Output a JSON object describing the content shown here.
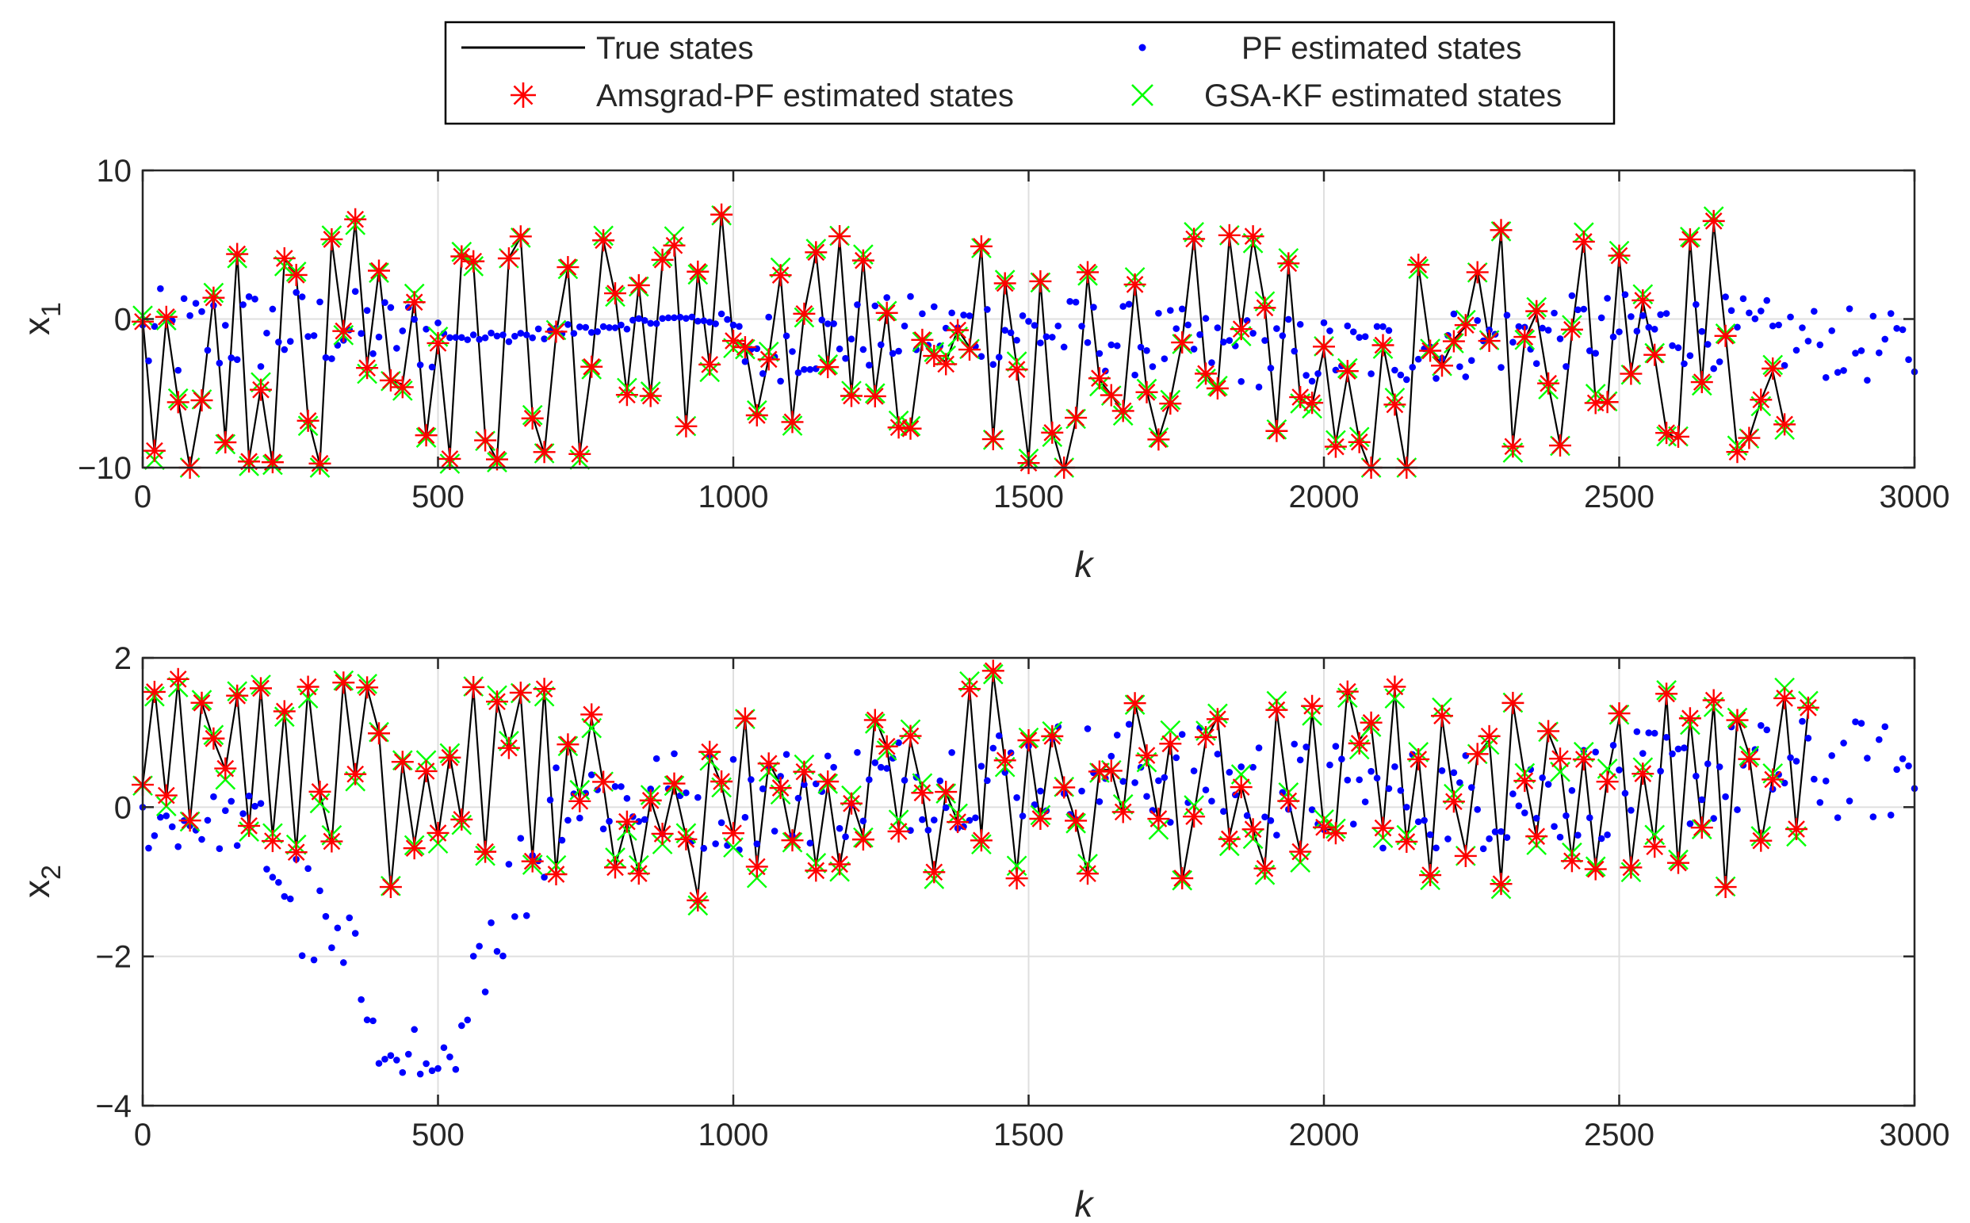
{
  "chart_data": {
    "type": "line",
    "legend": {
      "placement": "top-center",
      "entries": [
        {
          "label": "True states",
          "marker": "line",
          "color": "#000000"
        },
        {
          "label": "PF estimated states",
          "marker": "dot",
          "color": "#0000ff"
        },
        {
          "label": "Amsgrad-PF estimated states",
          "marker": "asterisk",
          "color": "#ff0000"
        },
        {
          "label": "GSA-KF estimated states",
          "marker": "cross",
          "color": "#00ff00"
        }
      ]
    },
    "sample_step": 20,
    "subplots": [
      {
        "ylabel": "x",
        "ylabel_sub": "1",
        "xlabel": "k",
        "xlim": [
          0,
          3000
        ],
        "ylim": [
          -10,
          10
        ],
        "xticks": [
          0,
          500,
          1000,
          1500,
          2000,
          2500,
          3000
        ],
        "yticks": [
          -10,
          0,
          10
        ],
        "ytick_labels": [
          "−10",
          "0",
          "10"
        ],
        "grid": true,
        "true_states": [
          0,
          -9,
          0,
          -5.5,
          -10,
          -5.5,
          1.6,
          -8.2,
          4.5,
          -9.5,
          -4.6,
          -9.8,
          4,
          3,
          -6.7,
          -9.8,
          5.3,
          -0.8,
          6.6,
          -3.2,
          3.3,
          -4.1,
          -4.4,
          1.3,
          -8,
          -1.5,
          -9.3,
          4.1,
          3.7,
          -8,
          -9.5,
          4.1,
          5.5,
          -6.5,
          -9.1,
          -1,
          3.5,
          -9.1,
          -3.2,
          5.3,
          1.6,
          -5.1,
          2.3,
          -5.2,
          3.8,
          5.1,
          -7.3,
          3.2,
          -3.2,
          7.2,
          -1.6,
          -1.7,
          -6.4,
          -2.6,
          3,
          -6.9,
          0.4,
          4.5,
          -3.3,
          5.4,
          -5.1,
          4.1,
          -5.1,
          0.6,
          -7.3,
          -7.5,
          -1.5,
          -2.3,
          -2.9,
          -0.7,
          -1.9,
          4.9,
          -8.2,
          2.6,
          -3.2,
          -9.5,
          2.6,
          -7.5,
          -10.3,
          -6.8,
          3,
          -4.1,
          -5.1,
          -6.3,
          2.4,
          -4.8,
          -8.1,
          -5.5,
          -1.5,
          5.5,
          -3.7,
          -4.8,
          5.5,
          -0.8,
          5.5,
          0.9,
          -7.5,
          3.7,
          -5.4,
          -5.8,
          -2,
          -8.4,
          -3.7,
          -8.2,
          -10.3,
          -1.7,
          -5.7,
          -10.3,
          3.6,
          -2.1,
          -3.1,
          -1.4,
          -0.5,
          3.3,
          -1.6,
          5.9,
          -8.5,
          -1.4,
          0.4,
          -4.4,
          -8.5,
          -0.9,
          5.4,
          -5.5,
          -5.7,
          4.2,
          -3.6,
          1.2,
          -2.5,
          -7.6,
          -8.1,
          5.4,
          -4.4,
          6.5,
          -1,
          -9,
          -8,
          -5.5,
          -3.5,
          -7.2
        ]
      },
      {
        "ylabel": "x",
        "ylabel_sub": "2",
        "xlabel": "k",
        "xlim": [
          0,
          3000
        ],
        "ylim": [
          -4,
          2
        ],
        "xticks": [
          0,
          500,
          1000,
          1500,
          2000,
          2500,
          3000
        ],
        "yticks": [
          -4,
          -2,
          0,
          2
        ],
        "ytick_labels": [
          "−4",
          "−2",
          "0",
          "2"
        ],
        "grid": true,
        "true_states": [
          0.3,
          1.6,
          0.1,
          1.7,
          -0.2,
          1.4,
          0.9,
          0.5,
          1.5,
          -0.3,
          1.6,
          -0.4,
          1.3,
          -0.6,
          1.6,
          0.2,
          -0.5,
          1.7,
          0.4,
          1.6,
          1,
          -1.1,
          0.6,
          -0.5,
          0.5,
          -0.4,
          0.7,
          -0.2,
          1.6,
          -0.6,
          1.4,
          0.8,
          1.5,
          -0.7,
          1.6,
          -0.9,
          0.9,
          0.1,
          1.2,
          0.3,
          -0.8,
          -0.2,
          -0.9,
          0.1,
          -0.4,
          0.3,
          -0.4,
          -1.2,
          0.7,
          0.3,
          -0.4,
          1.2,
          -0.8,
          0.6,
          0.3,
          -0.5,
          0.5,
          -0.8,
          0.3,
          -0.8,
          0.1,
          -0.4,
          1.2,
          0.8,
          -0.3,
          0.9,
          0.2,
          -0.9,
          0.2,
          -0.2,
          1.6,
          -0.4,
          1.8,
          0.6,
          -0.9,
          0.9,
          -0.2,
          1,
          0.3,
          -0.2,
          -0.9,
          0.5,
          0.5,
          -0.1,
          1.4,
          0.7,
          -0.2,
          0.9,
          -1,
          -0.1,
          0.9,
          1.2,
          -0.4,
          0.3,
          -0.3,
          -0.8,
          1.3,
          0.1,
          -0.6,
          1.3,
          -0.3,
          -0.3,
          1.6,
          0.9,
          1.1,
          -0.3,
          1.6,
          -0.5,
          0.7,
          -0.9,
          1.2,
          0.1,
          -0.6,
          0.7,
          0.9,
          -1,
          1.4,
          0.4,
          -0.4,
          1,
          0.6,
          -0.7,
          0.7,
          -0.8,
          0.4,
          1.2,
          -0.8,
          0.5,
          -0.5,
          1.5,
          -0.8,
          1.2,
          -0.3,
          1.4,
          -1.1,
          1.2,
          0.7,
          -0.5,
          0.4,
          1.5,
          -0.3,
          1.3
        ]
      }
    ]
  }
}
